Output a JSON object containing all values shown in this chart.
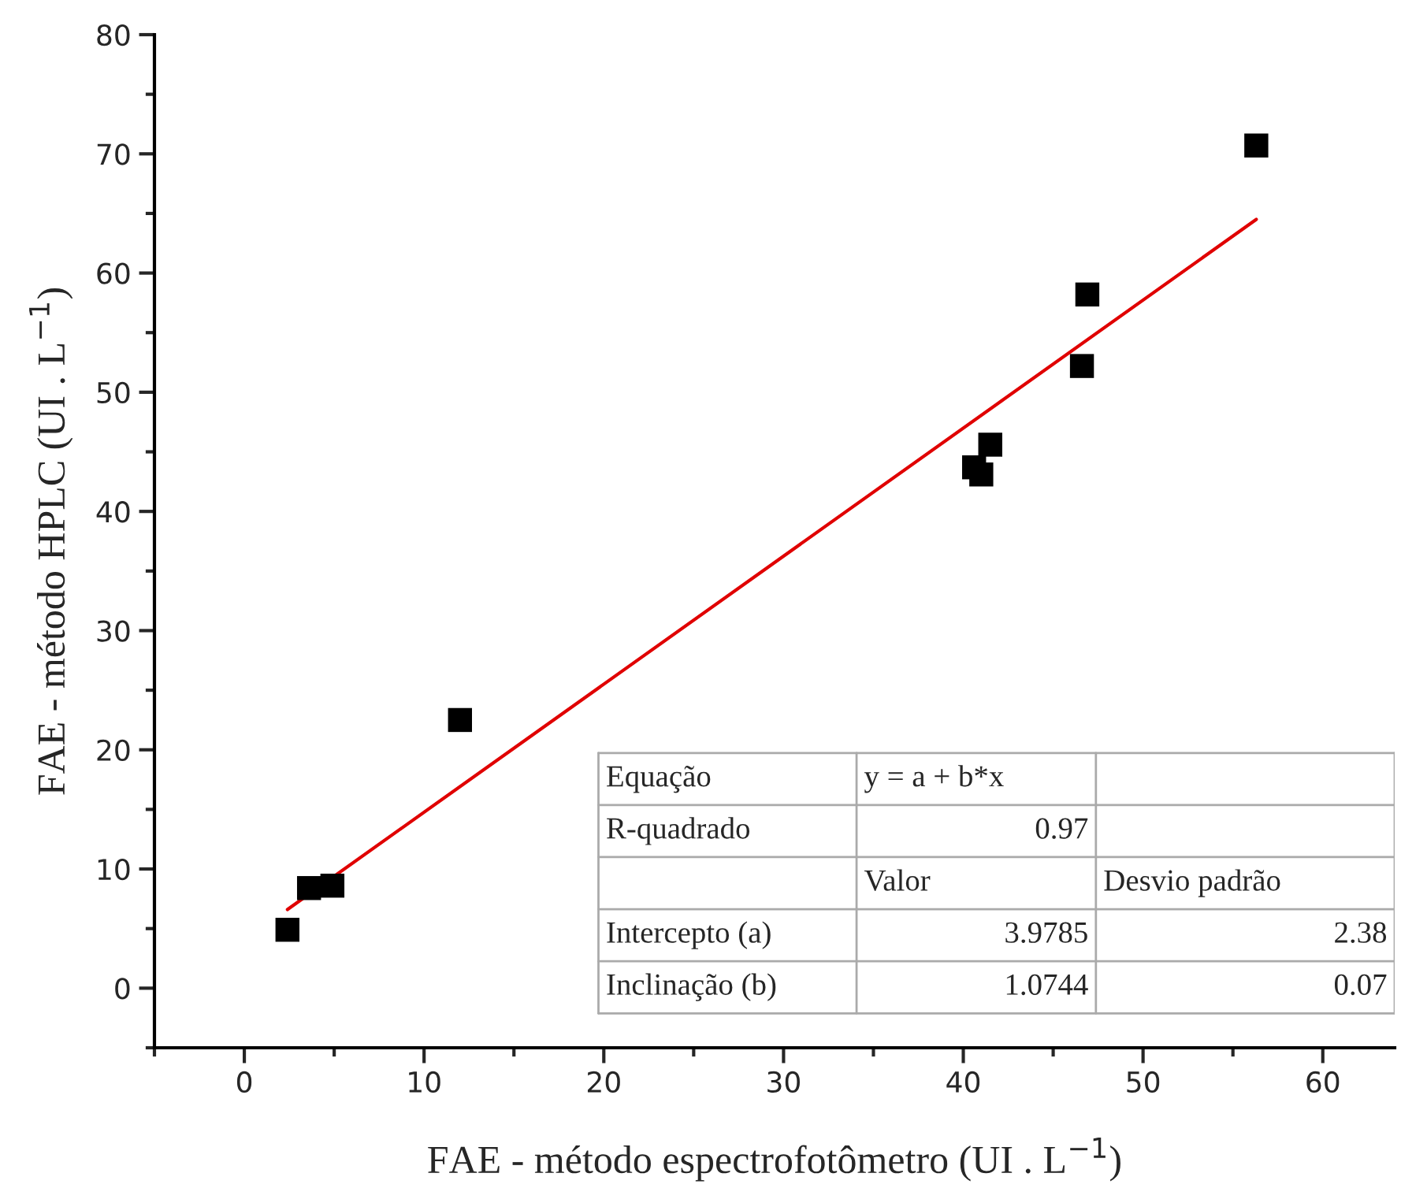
{
  "chart_data": {
    "type": "scatter",
    "xlabel": "FAE - método espectrofotômetro (UI . L$^{−1}$)",
    "ylabel": "FAE - método HPLC (UI . L$^{−1}$)",
    "series": [
      {
        "color": "#000000",
        "marker": "square",
        "x": [
          2.4,
          3.6,
          4.9,
          12.0,
          40.6,
          41.0,
          41.5,
          46.6,
          46.9,
          56.3
        ],
        "values": [
          4.9,
          8.4,
          8.6,
          22.5,
          43.7,
          43.1,
          45.6,
          52.2,
          58.2,
          70.7
        ]
      },
      {
        "type": "line",
        "color": "#e00000",
        "x": [
          2.4,
          56.3
        ],
        "values": [
          6.6,
          64.5
        ]
      }
    ],
    "xlim": [
      -5,
      64
    ],
    "ylim": [
      -5,
      80
    ],
    "xticks": [
      {
        "value": -5,
        "label": null
      },
      0,
      {
        "value": 5,
        "label": null
      },
      10,
      {
        "value": 15,
        "label": null
      },
      20,
      {
        "value": 25,
        "label": null
      },
      30,
      {
        "value": 35,
        "label": null
      },
      40,
      {
        "value": 45,
        "label": null
      },
      50,
      {
        "value": 55,
        "label": null
      },
      60
    ],
    "yticks": [
      {
        "value": -5,
        "label": null
      },
      0,
      {
        "value": 5,
        "label": null
      },
      10,
      {
        "value": 15,
        "label": null
      },
      20,
      {
        "value": 25,
        "label": null
      },
      30,
      {
        "value": 35,
        "label": null
      },
      40,
      {
        "value": 45,
        "label": null
      },
      50,
      {
        "value": 55,
        "label": null
      },
      60,
      {
        "value": 65,
        "label": null
      },
      70,
      {
        "value": 75,
        "label": null
      },
      80
    ],
    "grid": false,
    "legend": false,
    "annotations": [
      "Equação\ty = a + b*x\t",
      "R-quadrado\t0.97\t",
      "\tValor\tDesvio padrão",
      "Intercepto (a)\t3.9785\t2.38",
      "Inclinação (b)\t1.0744\t0.07"
    ]
  }
}
